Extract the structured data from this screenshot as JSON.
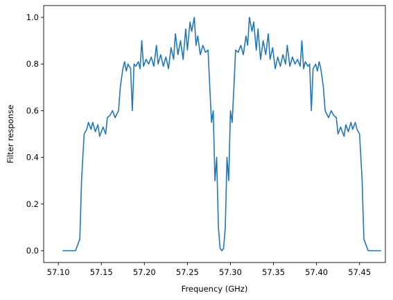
{
  "chart_data": {
    "type": "line",
    "xlabel": "Frequency (GHz)",
    "ylabel": "Filter response",
    "xlim": [
      57.083,
      57.48
    ],
    "ylim": [
      -0.0506,
      1.0506
    ],
    "xticks": [
      {
        "value": 57.1,
        "label": "57.10"
      },
      {
        "value": 57.15,
        "label": "57.15"
      },
      {
        "value": 57.2,
        "label": "57.20"
      },
      {
        "value": 57.25,
        "label": "57.25"
      },
      {
        "value": 57.3,
        "label": "57.30"
      },
      {
        "value": 57.35,
        "label": "57.35"
      },
      {
        "value": 57.4,
        "label": "57.40"
      },
      {
        "value": 57.45,
        "label": "57.45"
      }
    ],
    "yticks": [
      {
        "value": 0,
        "label": "0.0"
      },
      {
        "value": 0.2,
        "label": "0.2"
      },
      {
        "value": 0.4,
        "label": "0.4"
      },
      {
        "value": 0.6,
        "label": "0.6"
      },
      {
        "value": 0.8,
        "label": "0.8"
      },
      {
        "value": 1,
        "label": "1.0"
      }
    ],
    "color": "#1f77b4",
    "x": [
      57.105,
      57.12,
      57.125,
      57.127,
      57.13,
      57.133,
      57.135,
      57.138,
      57.14,
      57.143,
      57.146,
      57.148,
      57.152,
      57.155,
      57.157,
      57.16,
      57.163,
      57.166,
      57.17,
      57.172,
      57.175,
      57.177,
      57.179,
      57.181,
      57.184,
      57.186,
      57.188,
      57.19,
      57.193,
      57.195,
      57.197,
      57.199,
      57.202,
      57.205,
      57.208,
      57.211,
      57.214,
      57.216,
      57.219,
      57.222,
      57.225,
      57.228,
      57.231,
      57.234,
      57.236,
      57.239,
      57.242,
      57.245,
      57.248,
      57.25,
      57.253,
      57.255,
      57.258,
      57.26,
      57.262,
      57.265,
      57.268,
      57.271,
      57.274,
      57.276,
      57.278,
      57.28,
      57.282,
      57.284,
      57.286,
      57.288,
      57.29,
      57.292,
      57.294,
      57.296,
      57.298,
      57.3,
      57.302,
      57.304,
      57.306,
      57.309,
      57.312,
      57.315,
      57.318,
      57.32,
      57.322,
      57.325,
      57.327,
      57.33,
      57.332,
      57.335,
      57.338,
      57.341,
      57.344,
      57.346,
      57.349,
      57.352,
      57.355,
      57.358,
      57.361,
      57.364,
      57.366,
      57.369,
      57.372,
      57.375,
      57.378,
      57.381,
      57.383,
      57.385,
      57.387,
      57.39,
      57.392,
      57.394,
      57.396,
      57.399,
      57.401,
      57.403,
      57.405,
      57.408,
      57.41,
      57.414,
      57.417,
      57.42,
      57.423,
      57.425,
      57.428,
      57.432,
      57.434,
      57.437,
      57.44,
      57.442,
      57.445,
      57.447,
      57.45,
      57.453,
      57.455,
      57.46,
      57.475
    ],
    "values": [
      0,
      0,
      0.05,
      0.3,
      0.5,
      0.52,
      0.55,
      0.52,
      0.55,
      0.51,
      0.54,
      0.49,
      0.53,
      0.5,
      0.57,
      0.58,
      0.6,
      0.57,
      0.6,
      0.7,
      0.78,
      0.81,
      0.77,
      0.8,
      0.78,
      0.6,
      0.8,
      0.79,
      0.81,
      0.78,
      0.9,
      0.79,
      0.82,
      0.8,
      0.83,
      0.79,
      0.88,
      0.8,
      0.84,
      0.79,
      0.83,
      0.78,
      0.87,
      0.82,
      0.93,
      0.84,
      0.9,
      0.82,
      0.95,
      0.86,
      0.98,
      0.94,
      1.0,
      0.88,
      0.92,
      0.84,
      0.88,
      0.85,
      0.86,
      0.7,
      0.55,
      0.6,
      0.3,
      0.4,
      0.1,
      0.01,
      0,
      0.01,
      0.1,
      0.4,
      0.3,
      0.6,
      0.55,
      0.7,
      0.86,
      0.85,
      0.88,
      0.84,
      0.92,
      0.88,
      1.0,
      0.94,
      0.98,
      0.86,
      0.95,
      0.82,
      0.9,
      0.84,
      0.93,
      0.82,
      0.87,
      0.78,
      0.83,
      0.79,
      0.84,
      0.8,
      0.88,
      0.79,
      0.83,
      0.8,
      0.82,
      0.79,
      0.9,
      0.78,
      0.81,
      0.79,
      0.8,
      0.6,
      0.78,
      0.8,
      0.77,
      0.81,
      0.78,
      0.7,
      0.6,
      0.57,
      0.6,
      0.58,
      0.57,
      0.5,
      0.53,
      0.49,
      0.54,
      0.51,
      0.55,
      0.52,
      0.55,
      0.52,
      0.5,
      0.3,
      0.05,
      0,
      0
    ]
  }
}
